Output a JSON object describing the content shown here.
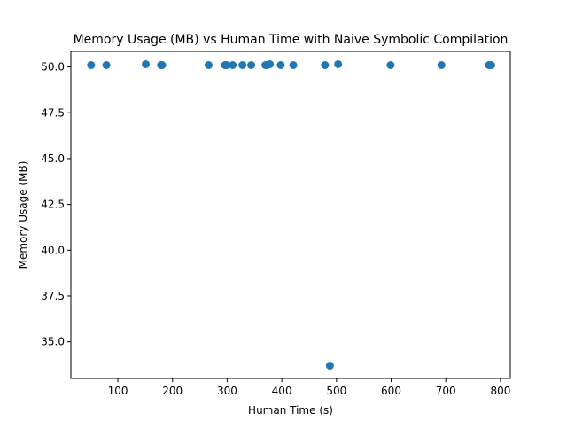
{
  "chart_data": {
    "type": "scatter",
    "title": "Memory Usage (MB) vs Human Time with Naive Symbolic Compilation",
    "xlabel": "Human Time (s)",
    "ylabel": "Memory Usage (MB)",
    "xlim": [
      14,
      818
    ],
    "ylim": [
      33.0,
      50.85
    ],
    "x_ticks": [
      100,
      200,
      300,
      400,
      500,
      600,
      700,
      800
    ],
    "x_tick_labels": [
      "100",
      "200",
      "300",
      "400",
      "500",
      "600",
      "700",
      "800"
    ],
    "y_ticks": [
      35.0,
      37.5,
      40.0,
      42.5,
      45.0,
      47.5,
      50.0
    ],
    "y_tick_labels": [
      "35.0",
      "37.5",
      "40.0",
      "42.5",
      "45.0",
      "47.5",
      "50.0"
    ],
    "grid": false,
    "marker_color": "#1f77b4",
    "points": [
      {
        "x": 51,
        "y": 50.1
      },
      {
        "x": 79,
        "y": 50.1
      },
      {
        "x": 151,
        "y": 50.15
      },
      {
        "x": 179,
        "y": 50.1
      },
      {
        "x": 181,
        "y": 50.1
      },
      {
        "x": 266,
        "y": 50.1
      },
      {
        "x": 296,
        "y": 50.1
      },
      {
        "x": 299,
        "y": 50.1
      },
      {
        "x": 310,
        "y": 50.1
      },
      {
        "x": 328,
        "y": 50.1
      },
      {
        "x": 344,
        "y": 50.1
      },
      {
        "x": 370,
        "y": 50.1
      },
      {
        "x": 373,
        "y": 50.1
      },
      {
        "x": 378,
        "y": 50.15
      },
      {
        "x": 398,
        "y": 50.1
      },
      {
        "x": 421,
        "y": 50.1
      },
      {
        "x": 479,
        "y": 50.1
      },
      {
        "x": 488,
        "y": 33.7
      },
      {
        "x": 503,
        "y": 50.15
      },
      {
        "x": 599,
        "y": 50.1
      },
      {
        "x": 692,
        "y": 50.1
      },
      {
        "x": 779,
        "y": 50.1
      },
      {
        "x": 783,
        "y": 50.1
      }
    ]
  }
}
